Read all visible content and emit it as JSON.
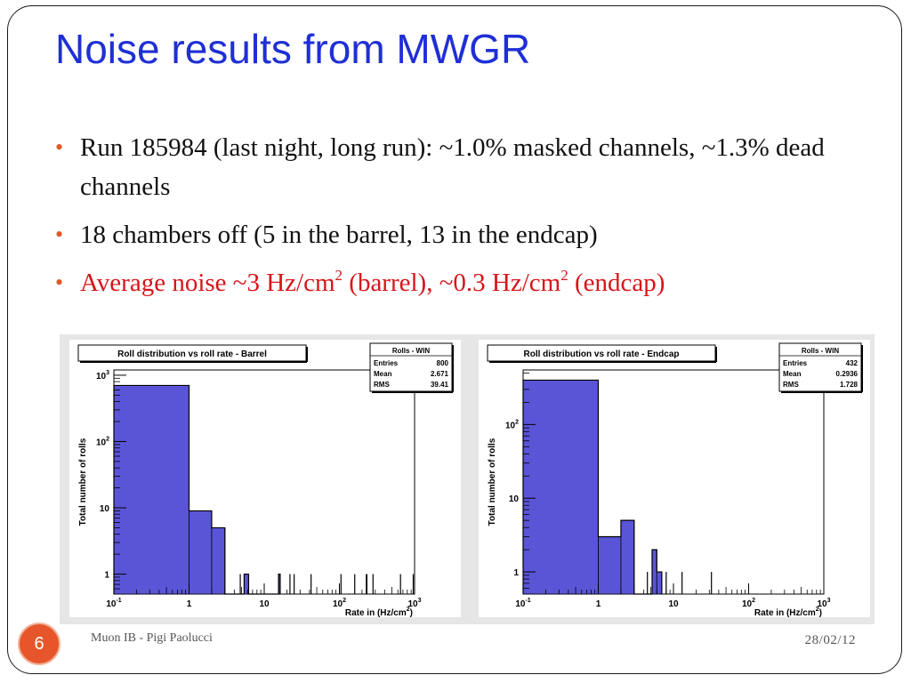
{
  "slide": {
    "title": "Noise results from MWGR",
    "bullets": [
      {
        "text": "Run 185984 (last night, long run): ~1.0% masked channels, ~1.3% dead channels"
      },
      {
        "text": "18 chambers off (5 in the barrel, 13 in the endcap)"
      },
      {
        "parts": [
          "Average noise ~3 Hz/cm",
          "2",
          " (barrel), ~0.3 Hz/cm",
          "2",
          " (endcap)"
        ]
      }
    ],
    "bullet_color": "#e05a2b",
    "title_color": "#1f2fd6",
    "highlight_color": "#d8141a"
  },
  "footer": {
    "page_number": "6",
    "author": "Muon IB - Pigi Paolucci",
    "date": "28/02/12"
  },
  "chart_data": [
    {
      "type": "bar",
      "title": "Roll distribution vs roll rate - Barrel",
      "xlabel": "Rate in (Hz/cm",
      "xlabel_sup": "2",
      "xlabel_end": ")",
      "ylabel": "Total number of rolls",
      "xscale": "log",
      "yscale": "log",
      "xlim": [
        0.1,
        1000
      ],
      "ylim": [
        0.5,
        1200
      ],
      "bar_color": "#5a55d6",
      "x_ticks": [
        {
          "b": "10",
          "e": "-1"
        },
        {
          "b": "1",
          "e": ""
        },
        {
          "b": "10",
          "e": ""
        },
        {
          "b": "10",
          "e": "2"
        },
        {
          "b": "10",
          "e": "3"
        }
      ],
      "y_ticks": [
        {
          "b": "1",
          "e": ""
        },
        {
          "b": "10",
          "e": ""
        },
        {
          "b": "10",
          "e": "2"
        },
        {
          "b": "10",
          "e": "3"
        }
      ],
      "stats": {
        "header": "Rolls - WIN",
        "rows": [
          [
            "Entries",
            "800"
          ],
          [
            "Mean",
            "2.671"
          ],
          [
            "RMS",
            "39.41"
          ]
        ]
      },
      "bins": [
        {
          "x0": 0.1,
          "x1": 1.0,
          "y": 700
        },
        {
          "x0": 1.0,
          "x1": 2.0,
          "y": 9
        },
        {
          "x0": 2.0,
          "x1": 3.0,
          "y": 5
        },
        {
          "x0": 5.4,
          "x1": 6.2,
          "y": 1
        },
        {
          "x0": 15.5,
          "x1": 16.3,
          "y": 1
        }
      ],
      "spikes": [
        4.8,
        22,
        25,
        42,
        105,
        160,
        228,
        232,
        280,
        650,
        960
      ]
    },
    {
      "type": "bar",
      "title": "Roll distribution vs roll rate - Endcap",
      "xlabel": "Rate in (Hz/cm",
      "xlabel_sup": "2",
      "xlabel_end": ")",
      "ylabel": "Total number of rolls",
      "xscale": "log",
      "yscale": "log",
      "xlim": [
        0.1,
        1000
      ],
      "ylim": [
        0.5,
        550
      ],
      "bar_color": "#5a55d6",
      "x_ticks": [
        {
          "b": "10",
          "e": "-1"
        },
        {
          "b": "1",
          "e": ""
        },
        {
          "b": "10",
          "e": ""
        },
        {
          "b": "10",
          "e": "2"
        },
        {
          "b": "10",
          "e": "3"
        }
      ],
      "y_ticks": [
        {
          "b": "1",
          "e": ""
        },
        {
          "b": "10",
          "e": ""
        },
        {
          "b": "10",
          "e": "2"
        }
      ],
      "stats": {
        "header": "Rolls - WIN",
        "rows": [
          [
            "Entries",
            "432"
          ],
          [
            "Mean",
            "0.2936"
          ],
          [
            "RMS",
            "1.728"
          ]
        ]
      },
      "bins": [
        {
          "x0": 0.1,
          "x1": 1.0,
          "y": 400
        },
        {
          "x0": 1.0,
          "x1": 2.0,
          "y": 3
        },
        {
          "x0": 2.0,
          "x1": 3.0,
          "y": 5
        },
        {
          "x0": 5.2,
          "x1": 6.0,
          "y": 2
        },
        {
          "x0": 6.0,
          "x1": 7.0,
          "y": 1
        }
      ],
      "spikes": [
        4.5,
        8,
        13,
        32
      ]
    }
  ]
}
